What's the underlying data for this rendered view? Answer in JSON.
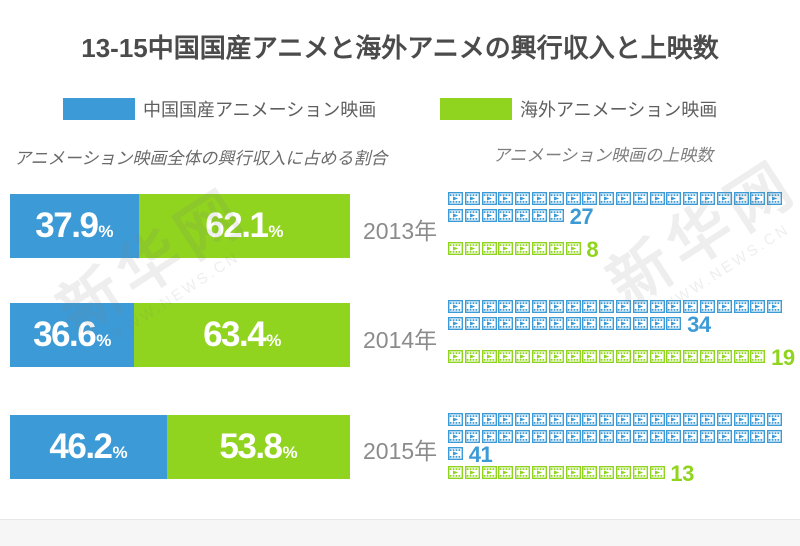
{
  "title": "13-15中国国産アニメと海外アニメの興行収入と上映数",
  "colors": {
    "domestic": "#3c9bd6",
    "overseas": "#90d41f"
  },
  "legend": {
    "domestic": "中国国産アニメーション映画",
    "overseas": "海外アニメーション映画"
  },
  "headers": {
    "revenue_share": "アニメーション映画全体の興行収入に占める割合",
    "screenings": "アニメーション映画の上映数"
  },
  "labels": {
    "percent_sign": "%"
  },
  "watermark": {
    "cn": "新华网",
    "en": "WWW.NEWS.CN"
  },
  "rows": [
    {
      "year": "2013年",
      "domestic_pct": 37.9,
      "overseas_pct": 62.1,
      "domestic_count": 27,
      "overseas_count": 8
    },
    {
      "year": "2014年",
      "domestic_pct": 36.6,
      "overseas_pct": 63.4,
      "domestic_count": 34,
      "overseas_count": 19
    },
    {
      "year": "2015年",
      "domestic_pct": 46.2,
      "overseas_pct": 53.8,
      "domestic_count": 41,
      "overseas_count": 13
    }
  ],
  "chart_data": [
    {
      "type": "bar",
      "variant": "horizontal-stacked-100percent",
      "title": "アニメーション映画全体の興行収入に占める割合",
      "categories": [
        "2013年",
        "2014年",
        "2015年"
      ],
      "series": [
        {
          "name": "中国国産アニメーション映画",
          "color": "#3c9bd6",
          "values": [
            37.9,
            36.6,
            46.2
          ]
        },
        {
          "name": "海外アニメーション映画",
          "color": "#90d41f",
          "values": [
            62.1,
            63.4,
            53.8
          ]
        }
      ],
      "unit": "%",
      "xlim": [
        0,
        100
      ],
      "grid": false,
      "legend_position": "top",
      "data_labels": "inside-white-bold"
    },
    {
      "type": "bar",
      "variant": "pictogram-film-frames",
      "title": "アニメーション映画の上映数",
      "categories": [
        "2013年",
        "2014年",
        "2015年"
      ],
      "series": [
        {
          "name": "中国国産アニメーション映画",
          "color": "#3c9bd6",
          "values": [
            27,
            34,
            41
          ]
        },
        {
          "name": "海外アニメーション映画",
          "color": "#90d41f",
          "values": [
            8,
            19,
            13
          ]
        }
      ],
      "icons_per_row": 20,
      "data_labels": "end-of-row-count"
    }
  ]
}
